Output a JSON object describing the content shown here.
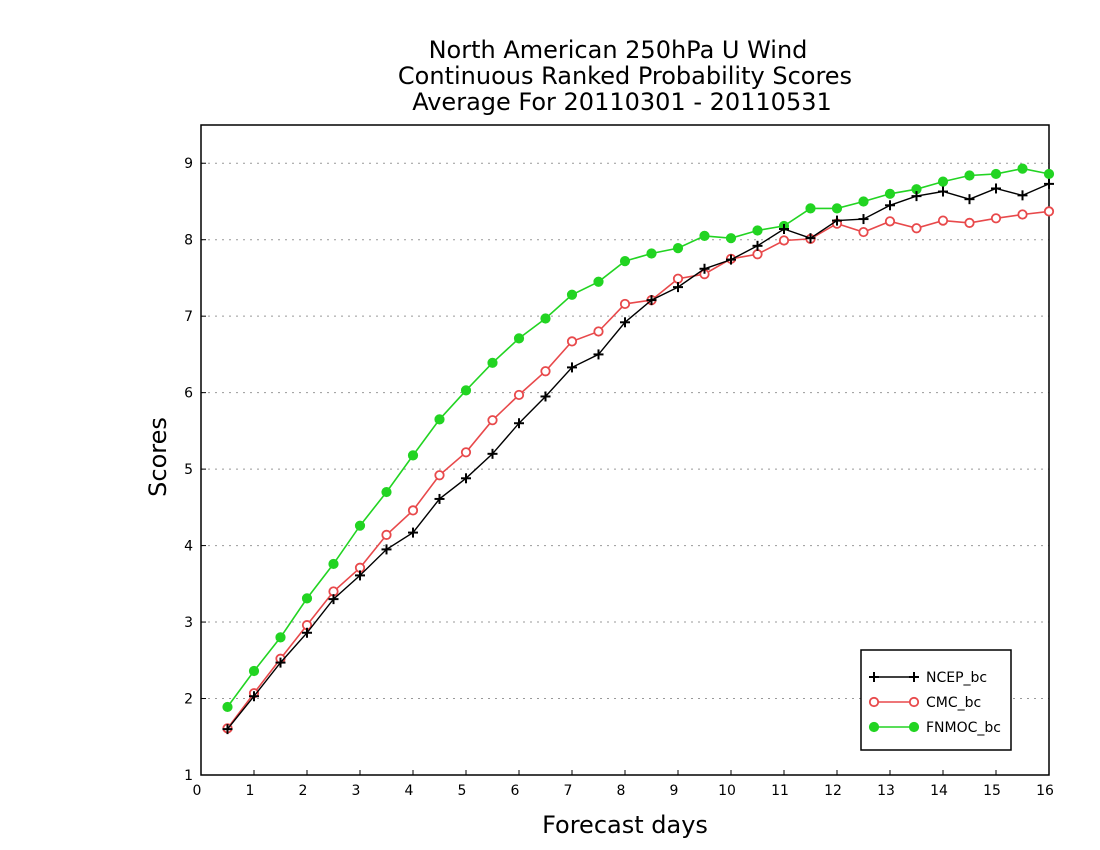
{
  "chart_data": {
    "type": "line",
    "title": [
      "North American 250hPa U Wind",
      "Continuous Ranked Probability Scores",
      "Average For 20110301 - 20110531"
    ],
    "xlabel": "Forecast days",
    "ylabel": "Scores",
    "xlim": [
      0,
      16
    ],
    "ylim": [
      1,
      9.5
    ],
    "xticks": [
      "0",
      "1",
      "2",
      "3",
      "4",
      "5",
      "6",
      "7",
      "8",
      "9",
      "10",
      "11",
      "12",
      "13",
      "14",
      "15",
      "16"
    ],
    "yticks": [
      "1",
      "2",
      "3",
      "4",
      "5",
      "6",
      "7",
      "8",
      "9"
    ],
    "grid": "horizontal dotted",
    "legend_position": "bottom-right",
    "x": [
      0.5,
      1,
      1.5,
      2,
      2.5,
      3,
      3.5,
      4,
      4.5,
      5,
      5.5,
      6,
      6.5,
      7,
      7.5,
      8,
      8.5,
      9,
      9.5,
      10,
      10.5,
      11,
      11.5,
      12,
      12.5,
      13,
      13.5,
      14,
      14.5,
      15,
      15.5,
      16
    ],
    "series": [
      {
        "name": "NCEP_bc",
        "color": "#000000",
        "marker": "plus",
        "values": [
          1.6,
          2.03,
          2.47,
          2.86,
          3.3,
          3.61,
          3.95,
          4.17,
          4.61,
          4.88,
          5.2,
          5.6,
          5.95,
          6.33,
          6.5,
          6.92,
          7.21,
          7.38,
          7.62,
          7.74,
          7.92,
          8.14,
          8.02,
          8.25,
          8.27,
          8.45,
          8.57,
          8.63,
          8.53,
          8.67,
          8.58,
          8.73
        ]
      },
      {
        "name": "CMC_bc",
        "color": "#e8494b",
        "marker": "open-circle",
        "values": [
          1.61,
          2.07,
          2.52,
          2.96,
          3.4,
          3.71,
          4.14,
          4.46,
          4.92,
          5.22,
          5.64,
          5.97,
          6.28,
          6.67,
          6.8,
          7.16,
          7.21,
          7.49,
          7.55,
          7.75,
          7.81,
          7.99,
          8.01,
          8.21,
          8.1,
          8.24,
          8.15,
          8.25,
          8.22,
          8.28,
          8.33,
          8.37
        ]
      },
      {
        "name": "FNMOC_bc",
        "color": "#22d422",
        "marker": "filled-circle",
        "values": [
          1.89,
          2.36,
          2.8,
          3.31,
          3.76,
          4.26,
          4.7,
          5.18,
          5.65,
          6.03,
          6.39,
          6.71,
          6.97,
          7.28,
          7.45,
          7.72,
          7.82,
          7.89,
          8.05,
          8.02,
          8.12,
          8.18,
          8.41,
          8.41,
          8.5,
          8.6,
          8.66,
          8.76,
          8.84,
          8.86,
          8.93,
          8.86
        ]
      }
    ]
  }
}
